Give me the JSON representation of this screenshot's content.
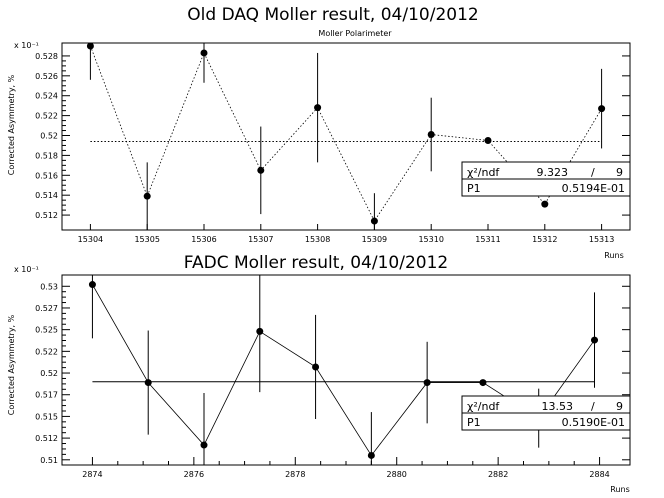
{
  "chart_data": [
    {
      "type": "scatter",
      "title": "Old DAQ Moller result, 04/10/2012",
      "subtitle": "Moller Polarimeter",
      "xlabel": "Runs",
      "ylabel": "Corrected Asymmetry, %",
      "y_multiplier": "x 10⁻¹",
      "categories": [
        "15304",
        "15305",
        "15306",
        "15307",
        "15308",
        "15309",
        "15310",
        "15311",
        "15312",
        "15313"
      ],
      "y_tick_labels": [
        "0.512",
        "0.514",
        "0.516",
        "0.518",
        "0.52",
        "0.522",
        "0.524",
        "0.526",
        "0.528"
      ],
      "y_ticks": [
        0.512,
        0.514,
        0.516,
        0.518,
        0.52,
        0.522,
        0.524,
        0.526,
        0.528
      ],
      "ylim": [
        0.5105,
        0.5293
      ],
      "values": [
        0.529,
        0.5139,
        0.5283,
        0.5165,
        0.5228,
        0.5114,
        0.5201,
        0.5195,
        0.5131,
        0.5227
      ],
      "errors": [
        0.0034,
        0.0034,
        0.003,
        0.0044,
        0.0055,
        0.0028,
        0.0037,
        0.0,
        0.0,
        0.004
      ],
      "fit_value": 0.5194,
      "line_style": "dotted",
      "stats": {
        "chi2_label": "χ²/ndf",
        "chi2_value": "9.323",
        "slash": "/",
        "ndf": "9",
        "p1_label": "P1",
        "p1_value": "0.5194E-01"
      }
    },
    {
      "type": "scatter",
      "title": "FADC Moller result, 04/10/2012",
      "subtitle": "",
      "xlabel": "Runs",
      "ylabel": "Corrected Asymmetry, %",
      "y_multiplier": "x 10⁻¹",
      "x_tick_labels": [
        "2874",
        "2876",
        "2878",
        "2880",
        "2882",
        "2884"
      ],
      "x_ticks": [
        2874,
        2876,
        2878,
        2880,
        2882,
        2884
      ],
      "xlim": [
        2873.4,
        2884.6
      ],
      "y_tick_labels": [
        "0.51",
        "0.512",
        "0.515",
        "0.517",
        "0.52",
        "0.522",
        "0.525",
        "0.527",
        "0.53"
      ],
      "y_ticks": [
        0.51,
        0.5125,
        0.515,
        0.5175,
        0.52,
        0.5225,
        0.525,
        0.5275,
        0.53
      ],
      "ylim": [
        0.5094,
        0.5313
      ],
      "x": [
        2874,
        2875.1,
        2876.2,
        2877.3,
        2878.4,
        2879.5,
        2880.6,
        2881.7,
        2882.8,
        2883.9
      ],
      "values": [
        0.5302,
        0.5189,
        0.5117,
        0.5248,
        0.5207,
        0.5105,
        0.5189,
        0.5189,
        0.5148,
        0.5238
      ],
      "errors": [
        0.0062,
        0.006,
        0.006,
        0.007,
        0.006,
        0.005,
        0.0047,
        0.0,
        0.0034,
        0.0055
      ],
      "fit_value": 0.519,
      "line_style": "solid",
      "stats": {
        "chi2_label": "χ²/ndf",
        "chi2_value": "13.53",
        "slash": "/",
        "ndf": "9",
        "p1_label": "P1",
        "p1_value": "0.5190E-01"
      }
    }
  ]
}
